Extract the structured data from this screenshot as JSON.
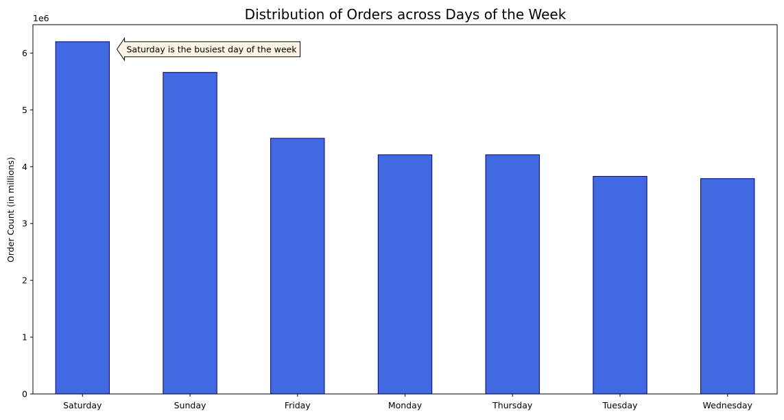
{
  "chart_data": {
    "type": "bar",
    "title": "Distribution of Orders across Days of the Week",
    "xlabel": "",
    "ylabel": "Order Count (in millions)",
    "y_offset_label": "1e6",
    "categories": [
      "Saturday",
      "Sunday",
      "Friday",
      "Monday",
      "Thursday",
      "Tuesday",
      "Wednesday"
    ],
    "values": [
      6200000,
      5660000,
      4500000,
      4210000,
      4210000,
      3830000,
      3790000
    ],
    "ylim": [
      0,
      6500000
    ],
    "yticks": [
      0,
      1000000,
      2000000,
      3000000,
      4000000,
      5000000,
      6000000
    ],
    "ytick_labels": [
      "0",
      "1",
      "2",
      "3",
      "4",
      "5",
      "6"
    ],
    "grid": false,
    "bar_color": "#4169e1",
    "bar_edge_color": "#000080",
    "annotation": {
      "text": "Saturday is the busiest day of the week",
      "target_category": "Saturday",
      "box_color": "#fdf4e6"
    }
  }
}
